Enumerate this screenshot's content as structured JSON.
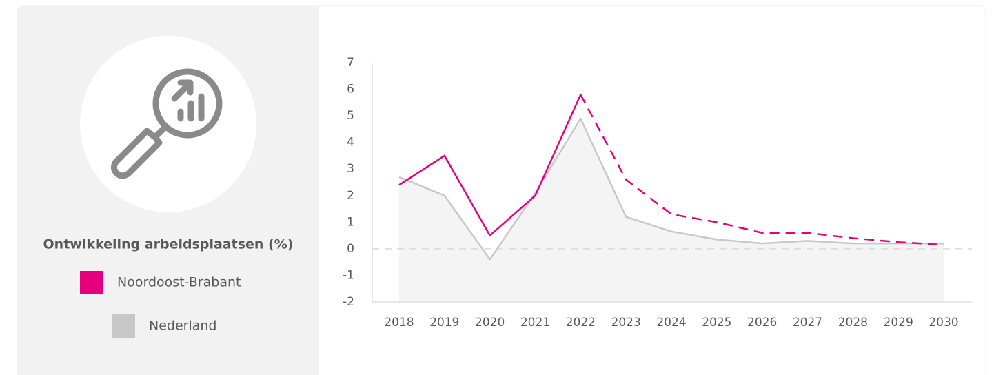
{
  "chart_data": {
    "type": "line",
    "title": "Ontwikkeling arbeidsplaatsen (%)",
    "categories": [
      "2018",
      "2019",
      "2020",
      "2021",
      "2022",
      "2023",
      "2024",
      "2025",
      "2026",
      "2027",
      "2028",
      "2029",
      "2030"
    ],
    "series": [
      {
        "name": "Noordoost-Brabant",
        "color": "#e6007e",
        "dashed_from": "2022",
        "values": [
          2.4,
          3.5,
          0.5,
          2.0,
          5.8,
          2.6,
          1.3,
          1.0,
          0.6,
          0.6,
          0.4,
          0.25,
          0.15
        ]
      },
      {
        "name": "Nederland",
        "color": "#c8c8c8",
        "area": true,
        "area_color": "#f4f4f4",
        "values": [
          2.7,
          2.0,
          -0.4,
          2.1,
          4.9,
          1.2,
          0.65,
          0.35,
          0.2,
          0.3,
          0.2,
          0.2,
          0.2
        ]
      }
    ],
    "ylim": [
      -2,
      7
    ],
    "yticks": [
      -2,
      -1,
      0,
      1,
      2,
      3,
      4,
      5,
      6,
      7
    ],
    "zero_line": true
  }
}
